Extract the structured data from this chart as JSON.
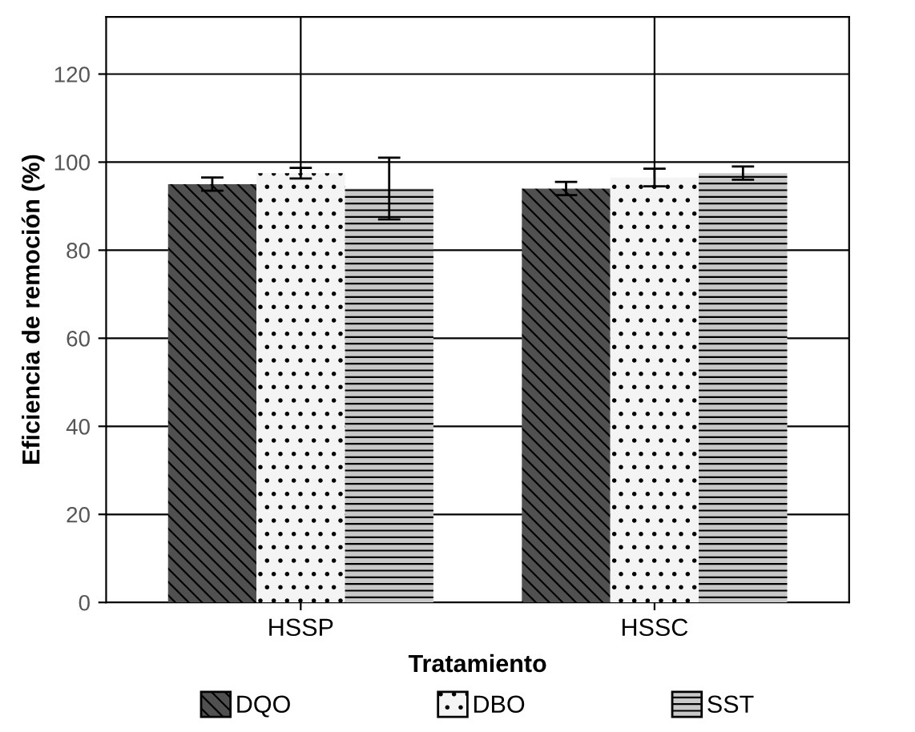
{
  "chart_data": {
    "type": "bar",
    "xlabel": "Tratamiento",
    "ylabel": "Eficiencia de remoción (%)",
    "categories": [
      "HSSP",
      "HSSC"
    ],
    "series": [
      {
        "name": "DQO",
        "color": "#505050",
        "values": [
          95,
          94
        ],
        "errors": [
          1.5,
          1.5
        ]
      },
      {
        "name": "DBO",
        "color": "#f4f4f4",
        "values": [
          97.5,
          96.5
        ],
        "errors": [
          1.2,
          2
        ]
      },
      {
        "name": "SST",
        "color": "#c8c8c8",
        "values": [
          94,
          97.5
        ],
        "errors": [
          7,
          1.5
        ]
      }
    ],
    "ylim": [
      0,
      133
    ],
    "yticks": [
      0,
      20,
      40,
      60,
      80,
      100,
      120
    ],
    "grid": true,
    "legend": "bottom"
  }
}
